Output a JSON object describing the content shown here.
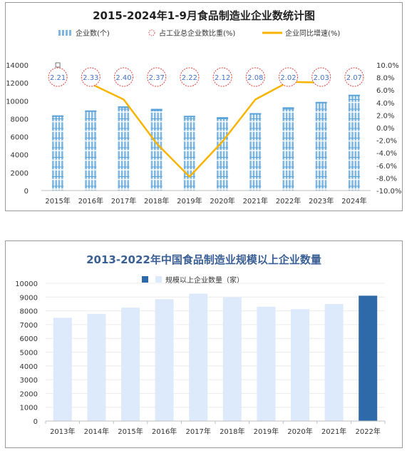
{
  "chart_data": [
    {
      "type": "bar",
      "title": "2015-2024年1-9月食品制造业企业数统计图",
      "categories": [
        "2015年",
        "2016年",
        "2017年",
        "2018年",
        "2019年",
        "2020年",
        "2021年",
        "2022年",
        "2023年",
        "2024年"
      ],
      "ylim": [
        0,
        14000
      ],
      "y2lim": [
        -10.0,
        10.0
      ],
      "yticks": [
        "0",
        "2000",
        "4000",
        "6000",
        "8000",
        "10000",
        "12000",
        "14000"
      ],
      "y2ticks": [
        "-10.0%",
        "-8.0%",
        "-6.0%",
        "-4.0%",
        "-2.0%",
        "0.0%",
        "2.0%",
        "4.0%",
        "6.0%",
        "8.0%",
        "10.0%"
      ],
      "legend": {
        "position": "top",
        "items": [
          "企业数(个)",
          "占工业总企业数比重(%)",
          "企业同比增速(%)"
        ]
      },
      "series": [
        {
          "name": "企业数(个)",
          "type": "bar",
          "values": [
            8300,
            8850,
            9300,
            8950,
            8250,
            8100,
            8550,
            9200,
            9800,
            10600
          ]
        },
        {
          "name": "占工业总企业数比重(%)",
          "type": "label-circle",
          "values": [
            "2.21",
            "2.33",
            "2.40",
            "2.37",
            "2.22",
            "2.12",
            "2.08",
            "2.02",
            "2.03",
            "2.07"
          ]
        },
        {
          "name": "企业同比增速(%)",
          "type": "line",
          "axis": "right",
          "values": [
            null,
            7.0,
            4.5,
            -2.5,
            -7.8,
            -2.2,
            4.5,
            7.3,
            7.2,
            null
          ]
        }
      ],
      "colors": {
        "bar": "#7fb7e3",
        "circle": "#e2423c",
        "line": "#f8b400",
        "label": "#4472c4"
      }
    },
    {
      "type": "bar",
      "title": "2013-2022年中国食品制造业规模以上企业数量",
      "categories": [
        "2013年",
        "2014年",
        "2015年",
        "2016年",
        "2017年",
        "2018年",
        "2019年",
        "2020年",
        "2021年",
        "2022年"
      ],
      "ylim": [
        0,
        10000
      ],
      "yticks": [
        "0",
        "1000",
        "2000",
        "3000",
        "4000",
        "5000",
        "6000",
        "7000",
        "8000",
        "9000",
        "10000"
      ],
      "legend": {
        "position": "top",
        "items": [
          "规模以上企业数量（家）"
        ]
      },
      "series": [
        {
          "name": "规模以上企业数量（家）",
          "values": [
            7500,
            7780,
            8230,
            8850,
            9250,
            8980,
            8300,
            8120,
            8500,
            9100
          ]
        }
      ],
      "colors": {
        "bar": "#ddeafb",
        "highlight": "#2e6aa9",
        "title": "#3a5f95"
      }
    }
  ]
}
